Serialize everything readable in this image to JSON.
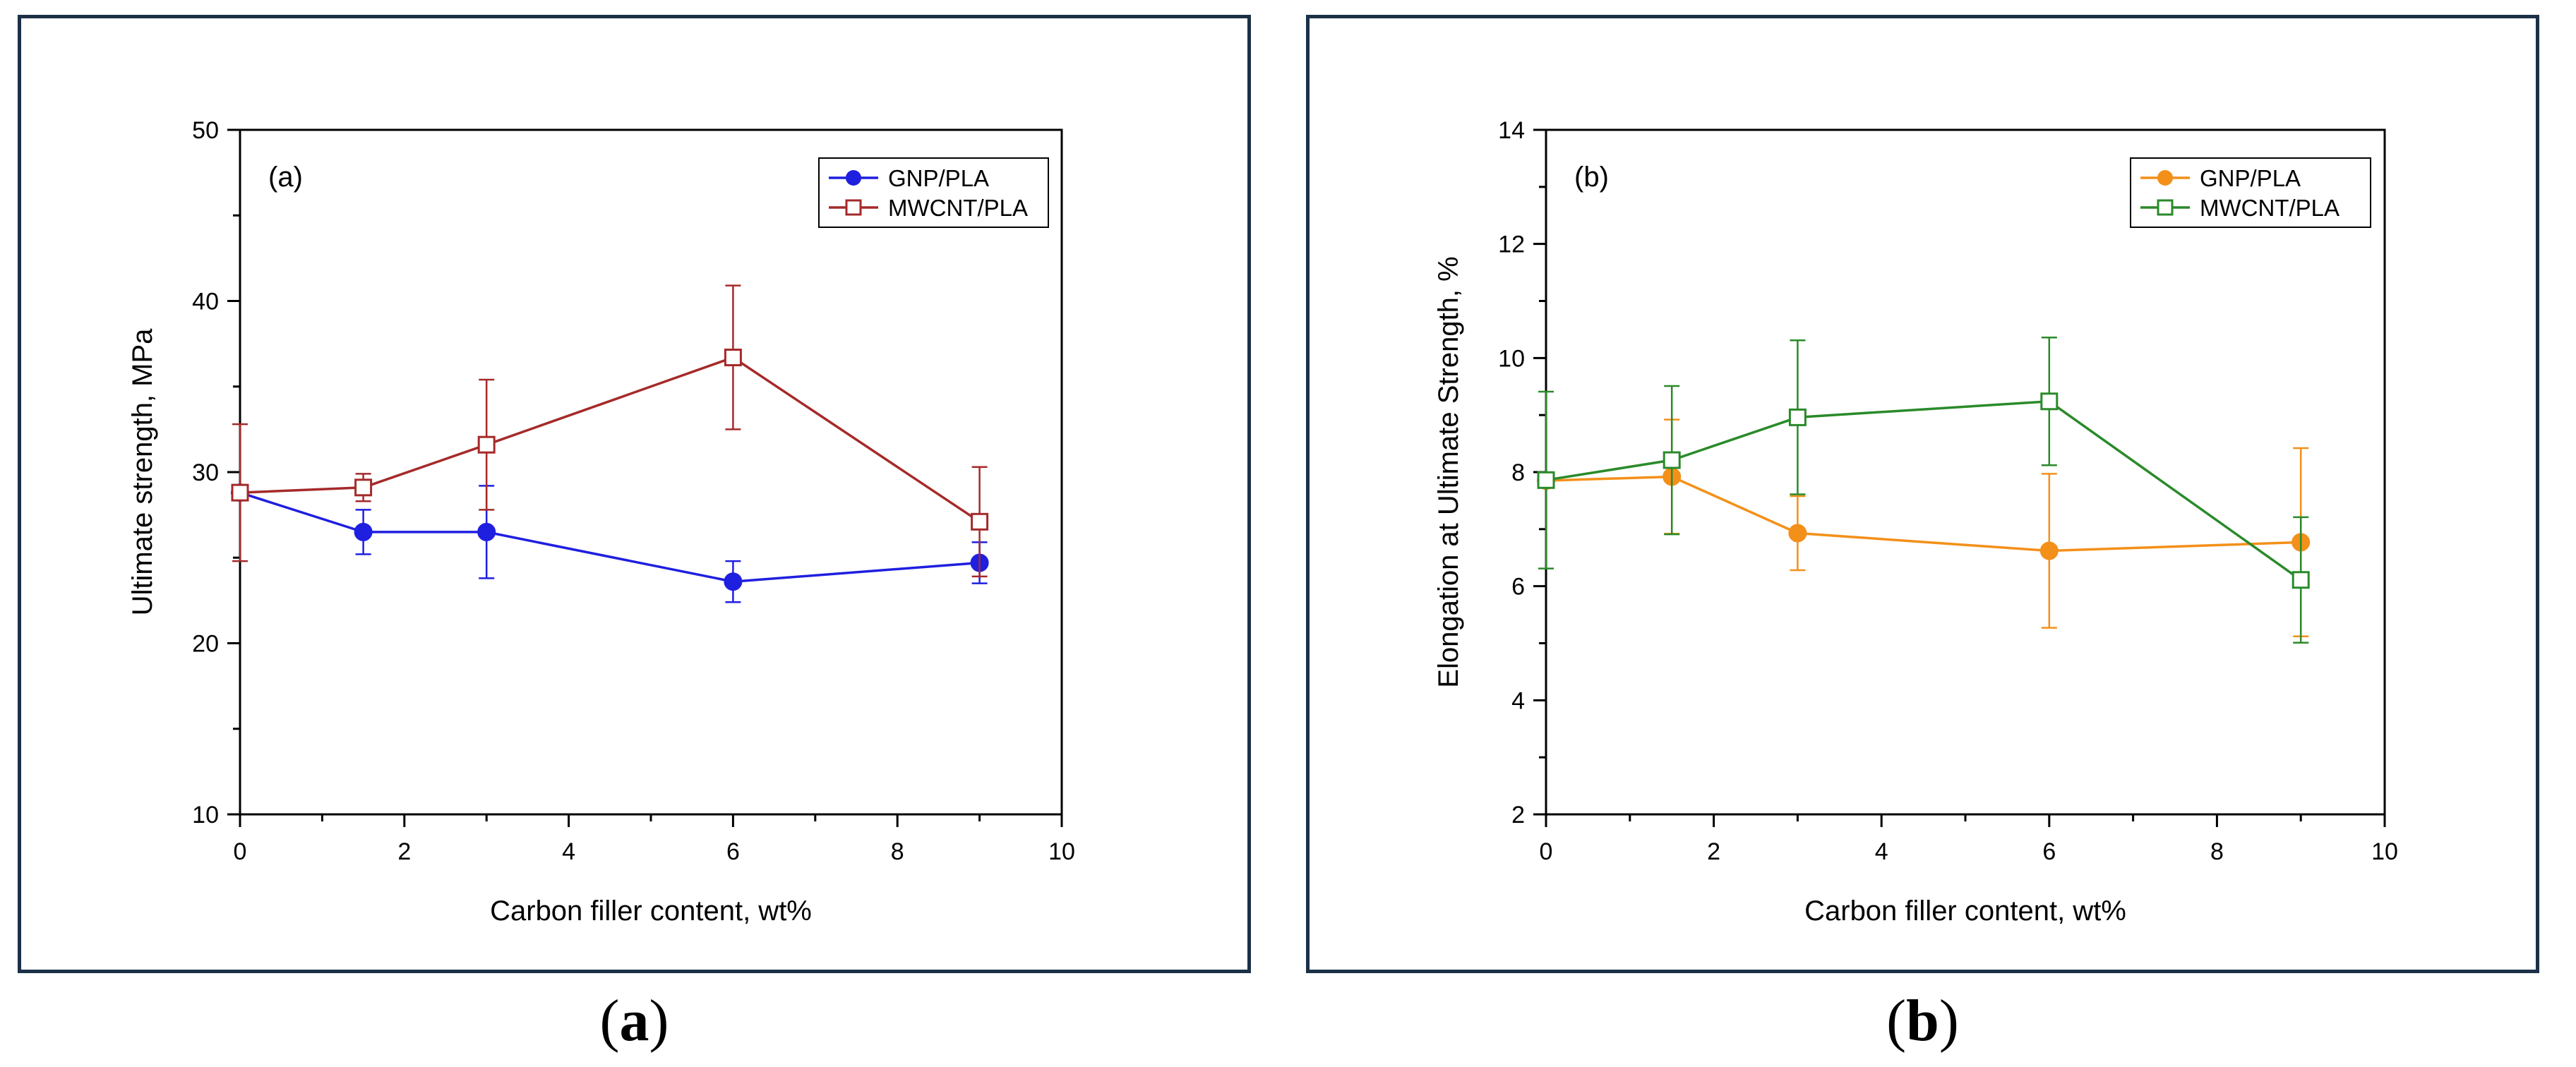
{
  "captions": [
    {
      "open": "(",
      "letter": "a",
      "close": ")"
    },
    {
      "open": "(",
      "letter": "b",
      "close": ")"
    }
  ],
  "chart_data": [
    {
      "type": "line",
      "panel_label": "(a)",
      "title": "",
      "xlabel": "Carbon filler content, wt%",
      "ylabel": "Ultimate strength, MPa",
      "xlim": [
        0,
        10
      ],
      "ylim": [
        10,
        50
      ],
      "xticks": [
        0,
        2,
        4,
        6,
        8,
        10
      ],
      "yticks": [
        10,
        20,
        30,
        40,
        50
      ],
      "x_minor_step": 1,
      "y_minor_step": 5,
      "grid": false,
      "legend_position": "top-right",
      "series": [
        {
          "name": "GNP/PLA",
          "color": "#1f1fe0",
          "marker": "filled-circle",
          "x": [
            0,
            1.5,
            3,
            6,
            9
          ],
          "y": [
            28.8,
            26.5,
            26.5,
            23.6,
            24.7
          ],
          "err": [
            0,
            1.3,
            2.7,
            1.2,
            1.2
          ]
        },
        {
          "name": "MWCNT/PLA",
          "color": "#a52a2a",
          "marker": "open-square",
          "x": [
            0,
            1.5,
            3,
            6,
            9
          ],
          "y": [
            28.8,
            29.1,
            31.6,
            36.7,
            27.1
          ],
          "err": [
            4.0,
            0.8,
            3.8,
            4.2,
            3.2
          ]
        }
      ]
    },
    {
      "type": "line",
      "panel_label": "(b)",
      "title": "",
      "xlabel": "Carbon filler content, wt%",
      "ylabel": "Elongation at Ultimate Strength, %",
      "xlim": [
        0,
        10
      ],
      "ylim": [
        2,
        14
      ],
      "xticks": [
        0,
        2,
        4,
        6,
        8,
        10
      ],
      "yticks": [
        2,
        4,
        6,
        8,
        10,
        12,
        14
      ],
      "x_minor_step": 1,
      "y_minor_step": 1,
      "grid": false,
      "legend_position": "top-right",
      "series": [
        {
          "name": "GNP/PLA",
          "color": "#f39019",
          "marker": "filled-circle",
          "x": [
            0,
            1.5,
            3,
            6,
            9
          ],
          "y": [
            7.85,
            7.92,
            6.93,
            6.62,
            6.77
          ],
          "err": [
            0,
            1.0,
            0.65,
            1.35,
            1.65
          ]
        },
        {
          "name": "MWCNT/PLA",
          "color": "#2a8a2a",
          "marker": "open-square",
          "x": [
            0,
            1.5,
            3,
            6,
            9
          ],
          "y": [
            7.86,
            8.21,
            8.96,
            9.24,
            6.11
          ],
          "err": [
            1.55,
            1.3,
            1.35,
            1.12,
            1.1
          ]
        }
      ]
    }
  ]
}
